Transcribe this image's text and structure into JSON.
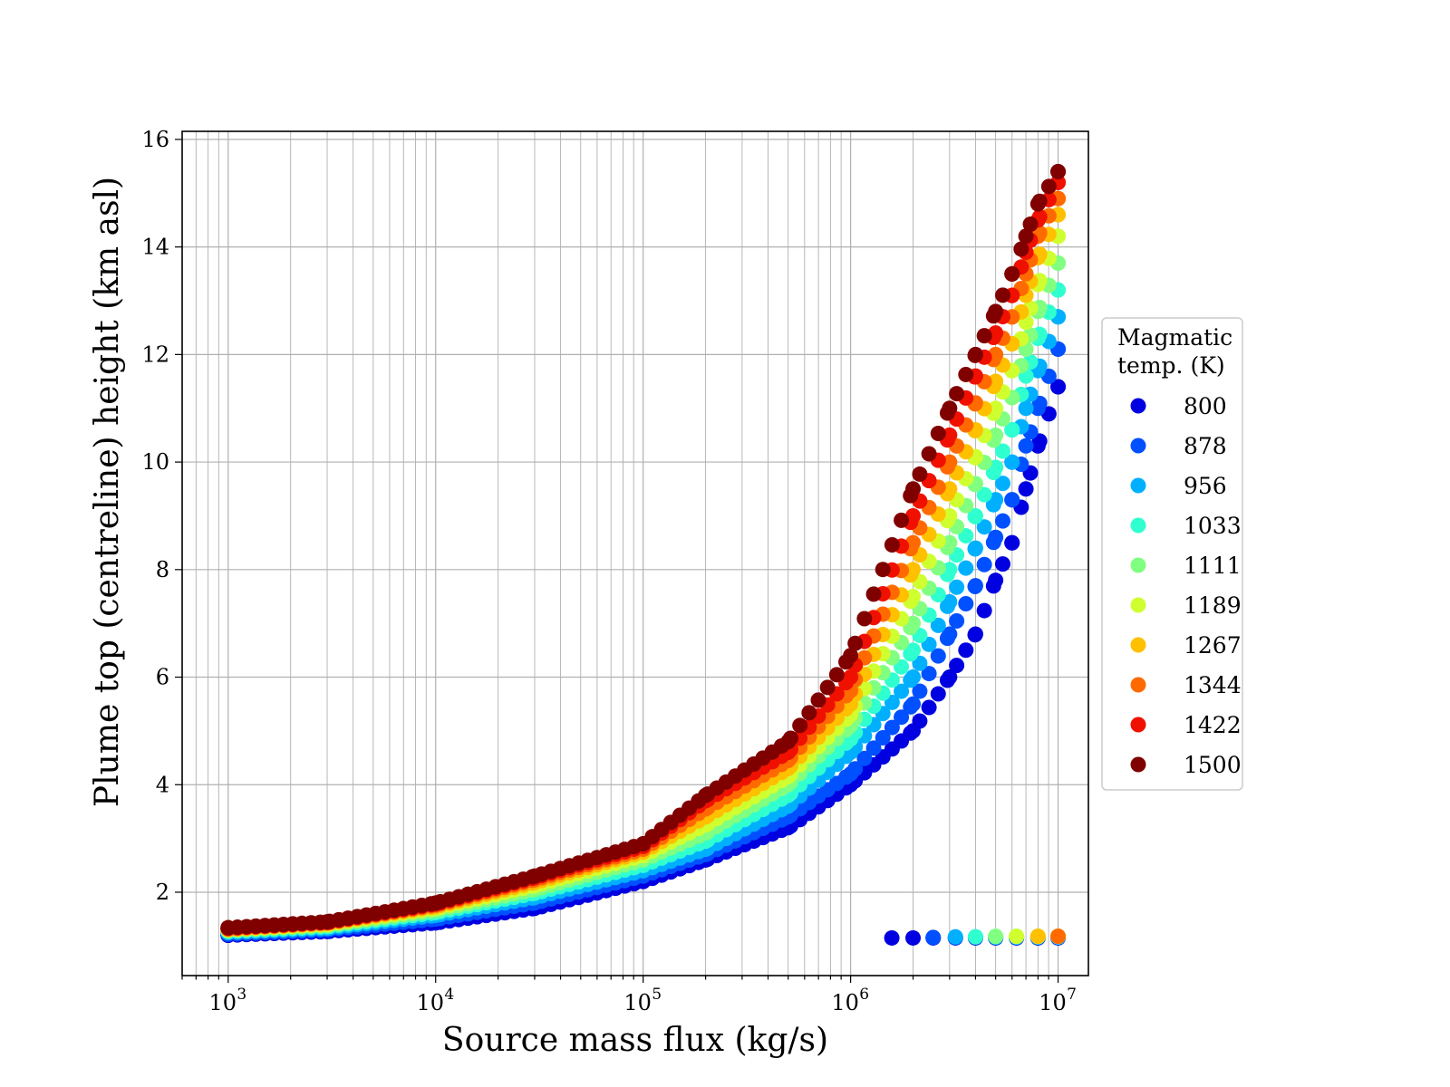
{
  "chart_data": {
    "type": "scatter",
    "title": "",
    "xlabel": "Source mass flux (kg/s)",
    "ylabel": "Plume top (centreline) height (km asl)",
    "xscale": "log",
    "xlim": [
      600,
      14000000
    ],
    "ylim": [
      0.45,
      16.15
    ],
    "x_ticks": [
      {
        "value": 1000,
        "base": "10",
        "exp": "3"
      },
      {
        "value": 10000,
        "base": "10",
        "exp": "4"
      },
      {
        "value": 100000,
        "base": "10",
        "exp": "5"
      },
      {
        "value": 1000000,
        "base": "10",
        "exp": "6"
      },
      {
        "value": 10000000,
        "base": "10",
        "exp": "7"
      }
    ],
    "y_ticks": [
      {
        "value": 2,
        "label": "2"
      },
      {
        "value": 4,
        "label": "4"
      },
      {
        "value": 6,
        "label": "6"
      },
      {
        "value": 8,
        "label": "8"
      },
      {
        "value": 10,
        "label": "10"
      },
      {
        "value": 12,
        "label": "12"
      },
      {
        "value": 14,
        "label": "14"
      },
      {
        "value": 16,
        "label": "16"
      }
    ],
    "grid": true,
    "legend": {
      "title_lines": [
        "Magmatic",
        "temp. (K)"
      ],
      "placement": "right-outside"
    },
    "series": [
      {
        "name": "800",
        "color": "#0000e0",
        "x": [
          1000,
          3000,
          10000,
          30000,
          100000,
          200000,
          500000,
          1000000,
          2000000,
          3000000,
          4000000,
          5000000,
          6000000,
          7000000,
          8000000,
          10000000
        ],
        "y": [
          1.2,
          1.27,
          1.43,
          1.7,
          2.2,
          2.6,
          3.2,
          4.0,
          5.0,
          6.0,
          6.8,
          7.8,
          8.5,
          9.5,
          10.3,
          11.4
        ],
        "low_x": [
          1580000,
          2000000,
          2500000,
          3200000,
          4000000,
          5000000,
          6300000,
          8000000,
          10000000
        ],
        "low_y": [
          1.15,
          1.15,
          1.15,
          1.15,
          1.15,
          1.15,
          1.15,
          1.15,
          1.15
        ]
      },
      {
        "name": "878",
        "color": "#0050ff",
        "x": [
          1000,
          3000,
          10000,
          30000,
          100000,
          200000,
          500000,
          1000000,
          2000000,
          3000000,
          4000000,
          5000000,
          6000000,
          7000000,
          8000000,
          10000000
        ],
        "y": [
          1.22,
          1.3,
          1.5,
          1.8,
          2.3,
          2.7,
          3.4,
          4.2,
          5.5,
          6.8,
          7.7,
          8.6,
          9.3,
          10.3,
          11.0,
          12.1
        ],
        "low_x": [
          2500000,
          3200000,
          4000000,
          5000000,
          6300000,
          8000000,
          10000000
        ],
        "low_y": [
          1.16,
          1.16,
          1.16,
          1.16,
          1.16,
          1.16,
          1.16
        ]
      },
      {
        "name": "956",
        "color": "#00b0ff",
        "x": [
          1000,
          3000,
          10000,
          30000,
          100000,
          200000,
          500000,
          1000000,
          2000000,
          3000000,
          4000000,
          5000000,
          6000000,
          7000000,
          8000000,
          10000000
        ],
        "y": [
          1.25,
          1.33,
          1.57,
          1.9,
          2.4,
          2.8,
          3.6,
          4.6,
          6.0,
          7.4,
          8.4,
          9.3,
          10.0,
          11.0,
          11.7,
          12.7
        ],
        "low_x": [
          3200000,
          4000000,
          5000000,
          6300000,
          8000000,
          10000000
        ],
        "low_y": [
          1.17,
          1.17,
          1.17,
          1.17,
          1.17,
          1.17
        ]
      },
      {
        "name": "1033",
        "color": "#30ffd0",
        "x": [
          1000,
          3000,
          10000,
          30000,
          100000,
          200000,
          500000,
          1000000,
          2000000,
          3000000,
          4000000,
          5000000,
          6000000,
          7000000,
          8000000,
          10000000
        ],
        "y": [
          1.27,
          1.36,
          1.62,
          1.98,
          2.5,
          2.95,
          3.8,
          4.85,
          6.5,
          8.0,
          9.0,
          9.9,
          10.6,
          11.6,
          12.3,
          13.2
        ],
        "low_x": [
          4000000,
          5000000,
          6300000,
          8000000,
          10000000
        ],
        "low_y": [
          1.17,
          1.17,
          1.17,
          1.17,
          1.17
        ]
      },
      {
        "name": "1111",
        "color": "#80ff80",
        "x": [
          1000,
          3000,
          10000,
          30000,
          100000,
          200000,
          500000,
          1000000,
          2000000,
          3000000,
          4000000,
          5000000,
          6000000,
          7000000,
          8000000,
          10000000
        ],
        "y": [
          1.29,
          1.38,
          1.66,
          2.05,
          2.6,
          3.1,
          4.0,
          5.1,
          7.0,
          8.5,
          9.6,
          10.5,
          11.2,
          12.1,
          12.8,
          13.7
        ],
        "low_x": [
          5000000,
          6300000,
          8000000,
          10000000
        ],
        "low_y": [
          1.18,
          1.18,
          1.18,
          1.18
        ]
      },
      {
        "name": "1189",
        "color": "#d0ff30",
        "x": [
          1000,
          3000,
          10000,
          30000,
          100000,
          200000,
          500000,
          1000000,
          2000000,
          3000000,
          4000000,
          5000000,
          6000000,
          7000000,
          8000000,
          10000000
        ],
        "y": [
          1.3,
          1.4,
          1.7,
          2.12,
          2.68,
          3.25,
          4.15,
          5.3,
          7.5,
          9.0,
          10.1,
          11.0,
          11.7,
          12.6,
          13.3,
          14.2
        ],
        "low_x": [
          6300000,
          8000000,
          10000000
        ],
        "low_y": [
          1.18,
          1.18,
          1.18
        ]
      },
      {
        "name": "1267",
        "color": "#ffc000",
        "x": [
          1000,
          3000,
          10000,
          30000,
          100000,
          200000,
          500000,
          1000000,
          2000000,
          3000000,
          4000000,
          5000000,
          6000000,
          7000000,
          8000000,
          10000000
        ],
        "y": [
          1.31,
          1.42,
          1.73,
          2.18,
          2.75,
          3.4,
          4.3,
          5.5,
          8.0,
          9.5,
          10.6,
          11.5,
          12.2,
          13.1,
          13.8,
          14.6
        ],
        "low_x": [
          8000000,
          10000000
        ],
        "low_y": [
          1.18,
          1.18
        ]
      },
      {
        "name": "1344",
        "color": "#ff6a00",
        "x": [
          1000,
          3000,
          10000,
          30000,
          100000,
          200000,
          500000,
          1000000,
          2000000,
          3000000,
          4000000,
          5000000,
          6000000,
          7000000,
          8000000,
          10000000
        ],
        "y": [
          1.32,
          1.43,
          1.76,
          2.23,
          2.8,
          3.55,
          4.45,
          5.75,
          8.5,
          10.0,
          11.1,
          12.0,
          12.7,
          13.5,
          14.2,
          14.9
        ],
        "low_x": [
          10000000
        ],
        "low_y": [
          1.18
        ]
      },
      {
        "name": "1422",
        "color": "#f01000",
        "x": [
          1000,
          3000,
          10000,
          30000,
          100000,
          200000,
          500000,
          1000000,
          2000000,
          3000000,
          4000000,
          5000000,
          6000000,
          7000000,
          8000000,
          10000000
        ],
        "y": [
          1.33,
          1.44,
          1.78,
          2.27,
          2.85,
          3.7,
          4.6,
          6.0,
          9.0,
          10.5,
          11.6,
          12.4,
          13.1,
          13.9,
          14.5,
          15.2
        ],
        "low_x": [],
        "low_y": []
      },
      {
        "name": "1500",
        "color": "#800000",
        "x": [
          1000,
          3000,
          10000,
          30000,
          100000,
          200000,
          500000,
          1000000,
          2000000,
          3000000,
          4000000,
          5000000,
          6000000,
          7000000,
          8000000,
          10000000
        ],
        "y": [
          1.34,
          1.45,
          1.8,
          2.3,
          2.9,
          3.8,
          4.8,
          6.4,
          9.5,
          11.0,
          12.0,
          12.8,
          13.5,
          14.2,
          14.8,
          15.4
        ],
        "low_x": [],
        "low_y": []
      }
    ]
  }
}
